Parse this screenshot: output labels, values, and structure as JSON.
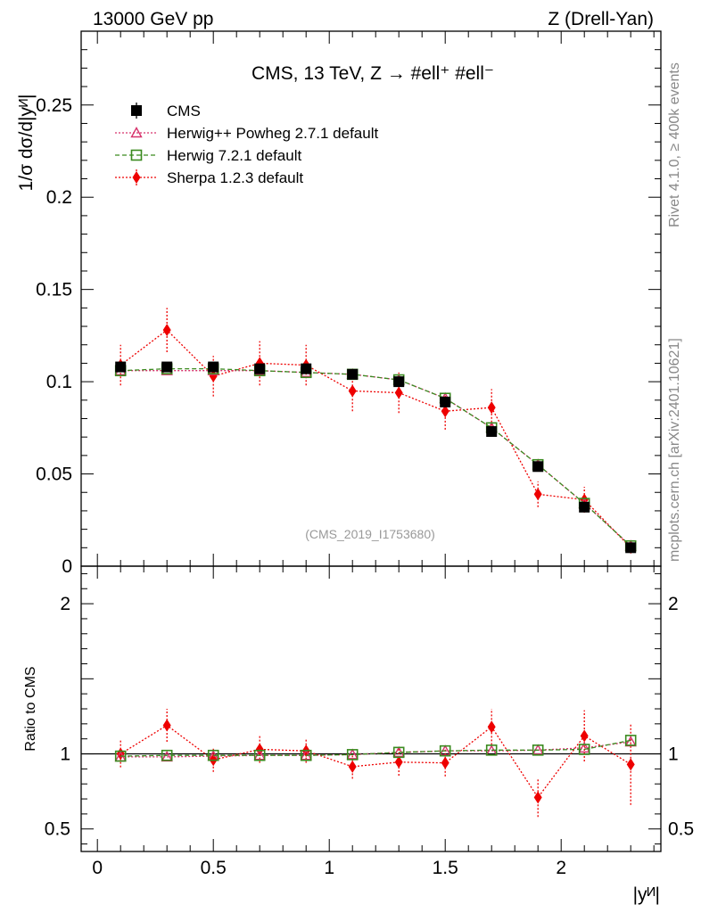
{
  "header": {
    "left": "13000 GeV pp",
    "right": "Z (Drell-Yan)"
  },
  "side": {
    "rivet": "Rivet 4.1.0, ≥ 400k events",
    "mcplots": "mcplots.cern.ch [arXiv:2401.10621]"
  },
  "chart_data": {
    "type": "line",
    "title": "CMS, 13 TeV, Z →  #ell⁺ #ell⁻",
    "watermark": "(CMS_2019_I1753680)",
    "xlabel": "|yᴻ|",
    "ylabel": "1/σ dσ/d|yᴻ|",
    "ratio_ylabel": "Ratio to CMS",
    "xlim": [
      -0.07,
      2.43
    ],
    "ylim": [
      0,
      0.29
    ],
    "ratio_ylim": [
      0.35,
      2.25
    ],
    "x_ticks": [
      0,
      0.5,
      1,
      1.5,
      2
    ],
    "x_tick_labels": [
      "0",
      "0.5",
      "1",
      "1.5",
      "2"
    ],
    "y_ticks": [
      0,
      0.05,
      0.1,
      0.15,
      0.2,
      0.25
    ],
    "y_tick_labels": [
      "0",
      "0.05",
      "0.1",
      "0.15",
      "0.2",
      "0.25"
    ],
    "ratio_ticks": [
      0.5,
      1,
      2
    ],
    "ratio_tick_labels": [
      "0.5",
      "1",
      "2"
    ],
    "legend_position": "top-left",
    "x": [
      0.1,
      0.3,
      0.5,
      0.7,
      0.9,
      1.1,
      1.3,
      1.5,
      1.7,
      1.9,
      2.1,
      2.3
    ],
    "series": [
      {
        "name": "CMS",
        "color": "#000000",
        "marker": "square-filled",
        "values": [
          0.108,
          0.108,
          0.108,
          0.107,
          0.107,
          0.104,
          0.1,
          0.089,
          0.073,
          0.054,
          0.032,
          0.01
        ],
        "errors": [
          0.001,
          0.001,
          0.001,
          0.001,
          0.001,
          0.001,
          0.001,
          0.001,
          0.001,
          0.001,
          0.001,
          0.001
        ],
        "ratio": [
          1,
          1,
          1,
          1,
          1,
          1,
          1,
          1,
          1,
          1,
          1,
          1
        ]
      },
      {
        "name": "Herwig++ Powheg 2.7.1 default",
        "color": "#d6336c",
        "marker": "triangle-open",
        "line": "dotted",
        "values": [
          0.106,
          0.106,
          0.106,
          0.106,
          0.105,
          0.104,
          0.101,
          0.091,
          0.075,
          0.055,
          0.034,
          0.011
        ],
        "ratio": [
          0.98,
          0.98,
          0.985,
          0.99,
          0.99,
          0.995,
          1.01,
          1.02,
          1.02,
          1.025,
          1.04,
          1.08
        ]
      },
      {
        "name": "Herwig 7.2.1 default",
        "color": "#3a8a1f",
        "marker": "square-open",
        "line": "dashed",
        "values": [
          0.106,
          0.107,
          0.107,
          0.106,
          0.105,
          0.104,
          0.101,
          0.091,
          0.075,
          0.055,
          0.034,
          0.011
        ],
        "ratio": [
          0.985,
          0.99,
          0.99,
          0.99,
          0.99,
          0.995,
          1.01,
          1.02,
          1.025,
          1.025,
          1.03,
          1.09
        ]
      },
      {
        "name": "Sherpa 1.2.3 default",
        "color": "#ee0000",
        "marker": "diamond-filled",
        "line": "dotted",
        "values": [
          0.109,
          0.128,
          0.103,
          0.11,
          0.109,
          0.095,
          0.094,
          0.084,
          0.086,
          0.039,
          0.036,
          0.01
        ],
        "errors": [
          0.011,
          0.012,
          0.011,
          0.012,
          0.011,
          0.011,
          0.011,
          0.01,
          0.01,
          0.007,
          0.007,
          0.003
        ],
        "ratio": [
          1.0,
          1.19,
          0.96,
          1.03,
          1.02,
          0.915,
          0.945,
          0.94,
          1.18,
          0.71,
          1.12,
          0.93
        ],
        "ratio_errors": [
          0.09,
          0.11,
          0.08,
          0.09,
          0.08,
          0.08,
          0.09,
          0.09,
          0.12,
          0.13,
          0.17,
          0.27
        ]
      }
    ]
  }
}
